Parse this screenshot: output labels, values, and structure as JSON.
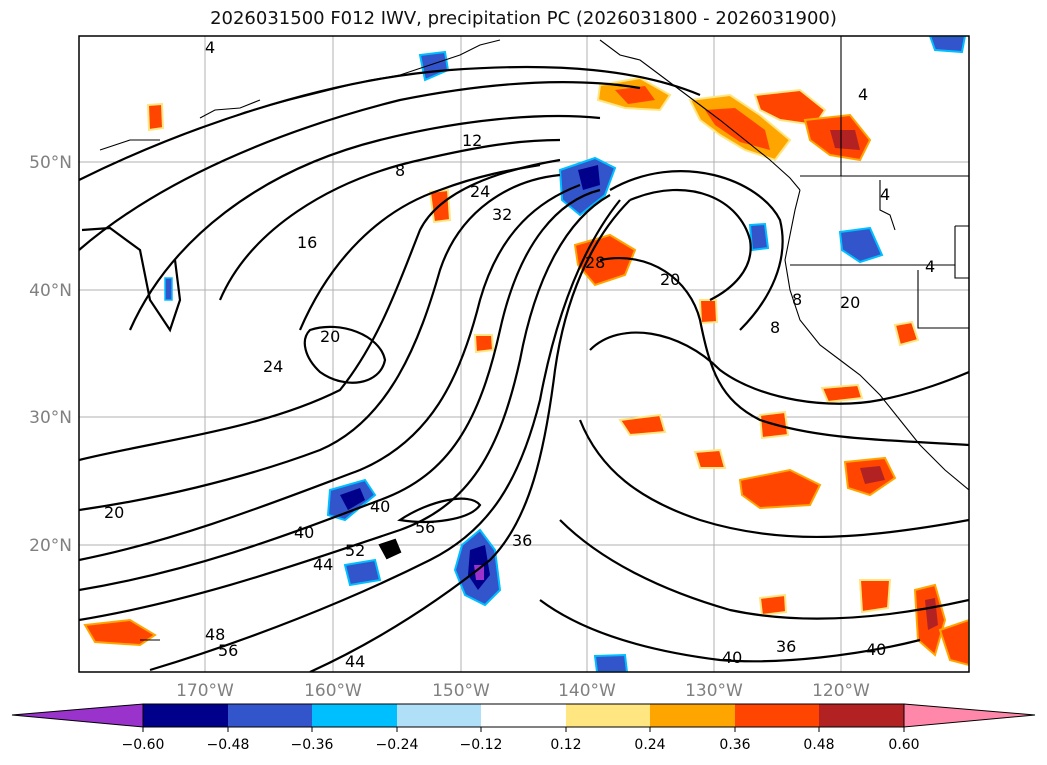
{
  "title": "2026031500 F012 IWV, precipitation PC (2026031800 - 2026031900)",
  "lat_labels": [
    "50°N",
    "40°N",
    "30°N",
    "20°N"
  ],
  "lon_labels": [
    "170°W",
    "160°W",
    "150°W",
    "140°W",
    "130°W",
    "120°W"
  ],
  "contour_labels": [
    "4",
    "12",
    "8",
    "24",
    "32",
    "16",
    "20",
    "24",
    "20",
    "28",
    "20",
    "8",
    "8",
    "20",
    "40",
    "40",
    "44",
    "52",
    "56",
    "36",
    "48",
    "56",
    "44",
    "40",
    "36",
    "40",
    "4",
    "4",
    "4"
  ],
  "colorbar": {
    "ticks": [
      "−0.60",
      "−0.48",
      "−0.36",
      "−0.24",
      "−0.12",
      "0.12",
      "0.24",
      "0.36",
      "0.48",
      "0.60"
    ],
    "colors": [
      "#9933cc",
      "#00008b",
      "#3355cc",
      "#00bfff",
      "#b0e0f8",
      "#ffffff",
      "#ffe680",
      "#ffa500",
      "#ff4500",
      "#b22222",
      "#ff88aa"
    ]
  },
  "map_colors": {
    "dry_strong": "#00008b",
    "dry_mid": "#3355cc",
    "dry_light": "#00bfff",
    "wet_light": "#ffe680",
    "wet_mid": "#ffa500",
    "wet_strong": "#ff4500",
    "wet_max": "#b22222"
  }
}
